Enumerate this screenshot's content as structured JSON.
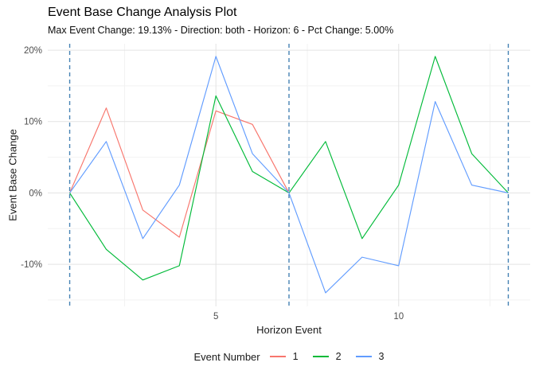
{
  "chart_data": {
    "type": "line",
    "title": "Event Base Change Analysis Plot",
    "subtitle": "Max Event Change: 19.13% - Direction: both - Horizon: 6 - Pct Change: 5.00%",
    "xlabel": "Horizon Event",
    "ylabel": "Event Base Change",
    "grid": true,
    "legend_position": "bottom",
    "xlim": [
      0.4,
      13.6
    ],
    "ylim": [
      -15.9,
      20.9
    ],
    "x_ticks": [
      {
        "value": 5,
        "label": "5"
      },
      {
        "value": 10,
        "label": "10"
      }
    ],
    "x_minor": [
      2.5,
      7.5,
      12.5
    ],
    "y_ticks": [
      {
        "value": 20,
        "label": "20%"
      },
      {
        "value": 10,
        "label": "10%"
      },
      {
        "value": 0,
        "label": "0%"
      },
      {
        "value": -10,
        "label": "-10%"
      }
    ],
    "y_minor": [
      15,
      5,
      -5,
      -15
    ],
    "event_boundaries": {
      "x": [
        1,
        7,
        13
      ],
      "color": "#4682B4",
      "style": "dashed"
    },
    "series": [
      {
        "name": "1",
        "color": "#F8766D",
        "x": [
          1,
          2,
          3,
          4,
          5,
          6,
          7
        ],
        "values": [
          0,
          11.9,
          -2.4,
          -6.2,
          11.5,
          9.6,
          0
        ]
      },
      {
        "name": "2",
        "color": "#00BA38",
        "x": [
          1,
          2,
          3,
          4,
          5,
          6,
          7,
          8,
          9,
          10,
          11,
          12,
          13
        ],
        "values": [
          0,
          -7.9,
          -12.2,
          -10.2,
          13.6,
          3.0,
          0,
          7.2,
          -6.4,
          1.1,
          19.13,
          5.5,
          0
        ]
      },
      {
        "name": "3",
        "color": "#619CFF",
        "x": [
          1,
          2,
          3,
          4,
          5,
          6,
          7,
          8,
          9,
          10,
          11,
          12,
          13
        ],
        "values": [
          0,
          7.2,
          -6.4,
          1.1,
          19.13,
          5.5,
          0,
          -14.0,
          -9.0,
          -10.2,
          12.8,
          1.1,
          0
        ]
      }
    ],
    "legend": {
      "title": "Event Number",
      "entries": [
        {
          "label": "1",
          "color": "#F8766D"
        },
        {
          "label": "2",
          "color": "#00BA38"
        },
        {
          "label": "3",
          "color": "#619CFF"
        }
      ]
    }
  }
}
